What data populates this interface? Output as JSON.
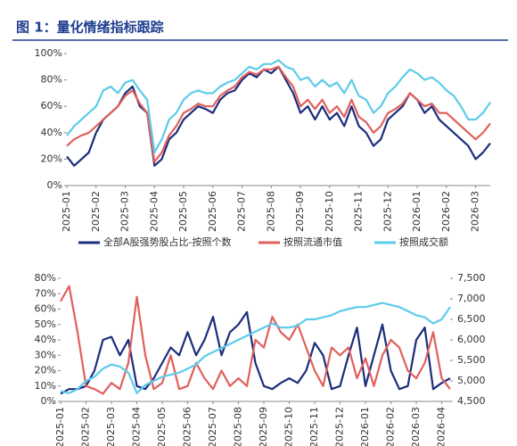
{
  "title": "图 1：量化情绪指标跟踪",
  "chart_data": [
    {
      "type": "line",
      "categories": [
        "2025-01",
        null,
        null,
        null,
        "2025-02",
        null,
        null,
        null,
        "2025-03",
        null,
        null,
        null,
        "2025-04",
        null,
        null,
        null,
        "2025-05",
        null,
        null,
        null,
        "2025-06",
        null,
        null,
        null,
        "2025-07",
        null,
        null,
        null,
        "2025-08",
        null,
        null,
        null,
        "2025-09",
        null,
        null,
        null,
        "2025-10",
        null,
        null,
        null,
        "2025-11",
        null,
        null,
        null,
        "2025-12",
        null,
        null,
        null,
        "2026-01",
        null,
        null,
        null,
        "2026-02",
        null,
        null,
        null,
        "2026-03",
        null,
        null
      ],
      "series": [
        {
          "name": "全部A股强势股占比-按照个数",
          "color": "#1b2d7c",
          "values": [
            22,
            15,
            20,
            25,
            40,
            50,
            55,
            60,
            70,
            75,
            60,
            55,
            15,
            20,
            35,
            40,
            50,
            55,
            60,
            58,
            55,
            65,
            70,
            72,
            80,
            85,
            82,
            88,
            85,
            90,
            80,
            70,
            55,
            60,
            50,
            60,
            50,
            55,
            45,
            60,
            45,
            40,
            30,
            35,
            50,
            55,
            60,
            70,
            65,
            55,
            60,
            50,
            45,
            40,
            35,
            30,
            20,
            25,
            32
          ]
        },
        {
          "name": "按照流通市值",
          "color": "#e0605c",
          "values": [
            30,
            35,
            38,
            40,
            45,
            50,
            55,
            60,
            68,
            72,
            62,
            55,
            18,
            25,
            38,
            45,
            55,
            58,
            62,
            60,
            60,
            68,
            72,
            75,
            82,
            86,
            84,
            88,
            88,
            90,
            82,
            75,
            60,
            65,
            58,
            65,
            55,
            60,
            52,
            65,
            52,
            48,
            40,
            45,
            55,
            58,
            62,
            70,
            65,
            60,
            62,
            55,
            55,
            50,
            45,
            40,
            35,
            40,
            47
          ]
        },
        {
          "name": "按照成交额",
          "color": "#5dcbea",
          "values": [
            38,
            45,
            50,
            55,
            60,
            72,
            75,
            70,
            78,
            80,
            72,
            65,
            25,
            35,
            50,
            55,
            65,
            70,
            72,
            70,
            70,
            75,
            78,
            80,
            85,
            90,
            88,
            92,
            92,
            95,
            90,
            88,
            80,
            82,
            75,
            80,
            75,
            78,
            70,
            80,
            68,
            65,
            55,
            60,
            70,
            75,
            82,
            88,
            85,
            80,
            82,
            78,
            72,
            68,
            60,
            50,
            50,
            55,
            63
          ]
        }
      ],
      "ylim": [
        0,
        100
      ],
      "yticks": [
        {
          "value": 0,
          "label": "0%"
        },
        {
          "value": 20,
          "label": "20%"
        },
        {
          "value": 40,
          "label": "40%"
        },
        {
          "value": 60,
          "label": "60%"
        },
        {
          "value": 80,
          "label": "80%"
        },
        {
          "value": 100,
          "label": "100%"
        }
      ],
      "legend": "bottom"
    },
    {
      "type": "line",
      "categories": [
        "2025-01",
        null,
        null,
        "2025-02",
        null,
        null,
        "2025-03",
        null,
        null,
        "2025-04",
        null,
        null,
        "2025-05",
        null,
        null,
        "2025-06",
        null,
        null,
        "2025-07",
        null,
        null,
        "2025-08",
        null,
        null,
        "2025-09",
        null,
        null,
        "2025-10",
        null,
        null,
        "2025-11",
        null,
        null,
        "2025-12",
        null,
        null,
        "2026-01",
        null,
        null,
        "2026-02",
        null,
        null,
        "2026-03",
        null,
        null,
        "2026-04",
        null
      ],
      "series": [
        {
          "color": "#1b2d7c",
          "values": [
            5,
            8,
            8,
            10,
            20,
            40,
            42,
            30,
            40,
            10,
            8,
            15,
            25,
            35,
            30,
            45,
            30,
            40,
            55,
            30,
            45,
            50,
            58,
            25,
            10,
            8,
            12,
            15,
            12,
            20,
            38,
            30,
            8,
            10,
            30,
            48,
            10,
            30,
            50,
            20,
            8,
            10,
            40,
            48,
            8,
            12,
            15
          ]
        },
        {
          "color": "#e0605c",
          "values": [
            65,
            75,
            45,
            10,
            8,
            5,
            12,
            8,
            25,
            68,
            30,
            8,
            12,
            30,
            8,
            10,
            25,
            15,
            8,
            20,
            10,
            15,
            10,
            40,
            35,
            55,
            45,
            40,
            50,
            35,
            20,
            10,
            35,
            30,
            35,
            15,
            28,
            10,
            30,
            40,
            35,
            20,
            15,
            25,
            45,
            15,
            8
          ]
        },
        {
          "color": "#5dcbea",
          "axis": "y2",
          "values": [
            4750,
            4700,
            4800,
            5000,
            5100,
            5300,
            5400,
            5350,
            5200,
            4700,
            4900,
            5000,
            5100,
            5150,
            5200,
            5300,
            5400,
            5600,
            5700,
            5800,
            5900,
            6000,
            6100,
            6200,
            6300,
            6400,
            6300,
            6300,
            6350,
            6500,
            6500,
            6550,
            6600,
            6700,
            6750,
            6800,
            6800,
            6850,
            6900,
            6850,
            6800,
            6700,
            6600,
            6550,
            6400,
            6500,
            6800
          ]
        }
      ],
      "ylim": [
        0,
        80
      ],
      "yticks": [
        {
          "value": 0,
          "label": "0%"
        },
        {
          "value": 10,
          "label": "10%"
        },
        {
          "value": 20,
          "label": "20%"
        },
        {
          "value": 30,
          "label": "30%"
        },
        {
          "value": 40,
          "label": "40%"
        },
        {
          "value": 50,
          "label": "50%"
        },
        {
          "value": 60,
          "label": "60%"
        },
        {
          "value": 70,
          "label": "70%"
        },
        {
          "value": 80,
          "label": "80%"
        }
      ],
      "y2lim": [
        4500,
        7500
      ],
      "y2ticks": [
        {
          "value": 4500,
          "label": "4,500"
        },
        {
          "value": 5000,
          "label": "5,000"
        },
        {
          "value": 5500,
          "label": "5,500"
        },
        {
          "value": 6000,
          "label": "6,000"
        },
        {
          "value": 6500,
          "label": "6,500"
        },
        {
          "value": 7000,
          "label": "7,000"
        },
        {
          "value": 7500,
          "label": "7,500"
        }
      ]
    }
  ]
}
